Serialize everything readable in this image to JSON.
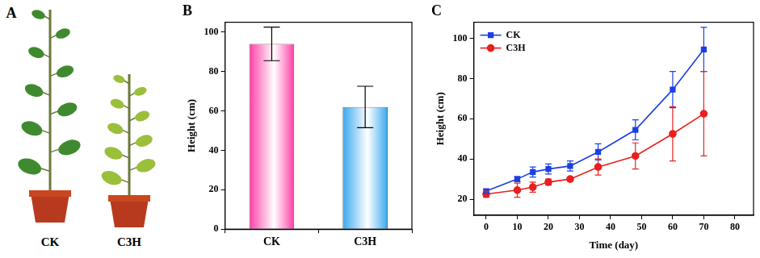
{
  "photo": {
    "label": "A",
    "captions": [
      "CK",
      "C3H"
    ]
  },
  "chart_data": [
    {
      "type": "bar",
      "title": "B",
      "categories": [
        "CK",
        "C3H"
      ],
      "values": [
        94,
        62
      ],
      "errors": [
        8.5,
        10.5
      ],
      "colors": [
        "#ff3fa6",
        "#39a8ef"
      ],
      "y_label": "Height (cm)",
      "ylim": [
        0,
        105
      ],
      "yticks": [
        0,
        20,
        40,
        60,
        80,
        100
      ],
      "grid": false
    },
    {
      "type": "line",
      "title": "C",
      "x_label": "Time (day)",
      "y_label": "Height (cm)",
      "x": [
        0,
        10,
        15,
        20,
        27,
        36,
        48,
        60,
        70
      ],
      "xlim": [
        -4,
        86
      ],
      "xticks": [
        0,
        10,
        20,
        30,
        40,
        50,
        60,
        70,
        80
      ],
      "ylim": [
        12,
        108
      ],
      "yticks": [
        20,
        40,
        60,
        80,
        100
      ],
      "grid": false,
      "legend": "top-left",
      "series": [
        {
          "name": "CK",
          "color": "#1c3fe6",
          "marker": "square",
          "values": [
            24,
            30,
            33.5,
            35,
            36.5,
            43.5,
            54.5,
            74.5,
            94.5
          ],
          "errors": [
            1,
            1.2,
            2.5,
            2.5,
            2.5,
            4,
            5,
            9,
            11
          ]
        },
        {
          "name": "C3H",
          "color": "#e8201f",
          "marker": "circle",
          "values": [
            22.5,
            24.5,
            26,
            28.5,
            30,
            36,
            41.5,
            52.5,
            62.5
          ],
          "errors": [
            1.5,
            3.5,
            2.5,
            1.5,
            1,
            4,
            6.5,
            13.5,
            21
          ]
        }
      ]
    }
  ]
}
